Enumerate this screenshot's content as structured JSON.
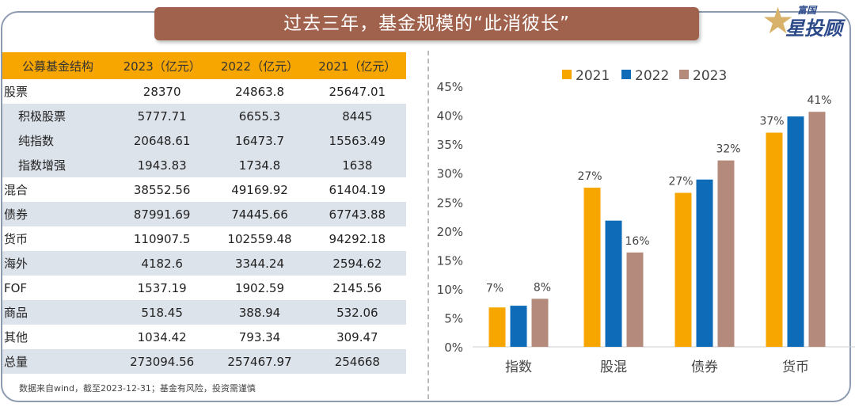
{
  "title": "过去三年，基金规模的“此消彼长”",
  "logo": {
    "line1": "富国",
    "line2": "星投顾"
  },
  "table": {
    "headers": [
      "公募基金结构",
      "2023（亿元）",
      "2022（亿元）",
      "2021（亿元）"
    ],
    "rows": [
      {
        "label": "股票",
        "values": [
          "28370",
          "24863.8",
          "25647.01"
        ],
        "sub": false
      },
      {
        "label": "积极股票",
        "values": [
          "5777.71",
          "6655.3",
          "8445"
        ],
        "sub": true
      },
      {
        "label": "纯指数",
        "values": [
          "20648.61",
          "16473.7",
          "15563.49"
        ],
        "sub": true
      },
      {
        "label": "指数增强",
        "values": [
          "1943.83",
          "1734.8",
          "1638"
        ],
        "sub": true
      },
      {
        "label": "混合",
        "values": [
          "38552.56",
          "49169.92",
          "61404.19"
        ],
        "sub": false
      },
      {
        "label": "债券",
        "values": [
          "87991.69",
          "74445.66",
          "67743.88"
        ],
        "sub": false
      },
      {
        "label": "货币",
        "values": [
          "110907.5",
          "102559.48",
          "94292.18"
        ],
        "sub": false
      },
      {
        "label": "海外",
        "values": [
          "4182.6",
          "3344.24",
          "2594.62"
        ],
        "sub": false
      },
      {
        "label": "FOF",
        "values": [
          "1537.19",
          "1902.59",
          "2145.56"
        ],
        "sub": false
      },
      {
        "label": "商品",
        "values": [
          "518.45",
          "388.94",
          "532.06"
        ],
        "sub": false
      },
      {
        "label": "其他",
        "values": [
          "1034.42",
          "793.34",
          "309.47"
        ],
        "sub": false
      },
      {
        "label": "总量",
        "values": [
          "273094.56",
          "257467.97",
          "254668"
        ],
        "sub": false
      }
    ]
  },
  "note": "数据来自wind，截至2023-12-31；基金有风险，投资需谨慎",
  "chart_data": {
    "type": "bar",
    "categories": [
      "指数",
      "股混",
      "债券",
      "货币"
    ],
    "series": [
      {
        "name": "2021",
        "color": "#f7a600",
        "values": [
          6.8,
          27.5,
          26.6,
          37.0
        ],
        "labels": [
          "7%",
          "27%",
          "27%",
          "37%"
        ]
      },
      {
        "name": "2022",
        "color": "#0e6bb8",
        "values": [
          7.1,
          21.8,
          28.9,
          39.8
        ],
        "labels": [
          "",
          "",
          "",
          ""
        ]
      },
      {
        "name": "2023",
        "color": "#b48a7c",
        "values": [
          8.3,
          16.3,
          32.2,
          40.6
        ],
        "labels": [
          "8%",
          "16%",
          "32%",
          "41%"
        ]
      }
    ],
    "ylim": [
      0,
      45
    ],
    "yticks": [
      "0%",
      "5%",
      "10%",
      "15%",
      "20%",
      "25%",
      "30%",
      "35%",
      "40%",
      "45%"
    ],
    "legend": "top",
    "grid": false
  }
}
